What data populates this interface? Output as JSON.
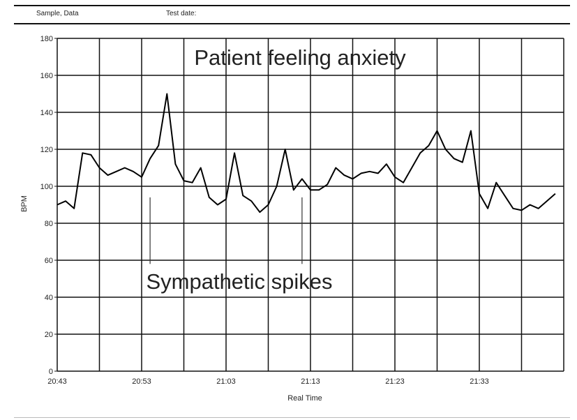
{
  "header": {
    "sample_label": "Sample, Data",
    "test_date_label": "Test date:"
  },
  "chart_data": {
    "type": "line",
    "title": "",
    "xlabel": "Real Time",
    "ylabel": "BPM",
    "ylim": [
      0,
      180
    ],
    "yticks": [
      0,
      20,
      40,
      60,
      80,
      100,
      120,
      140,
      160,
      180
    ],
    "xlim_minutes": [
      "20:43",
      "21:43"
    ],
    "xtick_labels": [
      "20:43",
      "20:53",
      "21:03",
      "21:13",
      "21:23",
      "21:33"
    ],
    "grid": true,
    "line_color": "#000000",
    "annotations": {
      "anxiety": "Patient feeling anxiety",
      "spikes": "Sympathetic spikes"
    },
    "annotation_markers": [
      "20:54",
      "21:12"
    ],
    "series": [
      {
        "x": [
          "20:43",
          "20:44",
          "20:45",
          "20:46",
          "20:47",
          "20:48",
          "20:49",
          "20:50",
          "20:51",
          "20:52",
          "20:53",
          "20:54",
          "20:55",
          "20:56",
          "20:57",
          "20:58",
          "20:59",
          "21:00",
          "21:01",
          "21:02",
          "21:03",
          "21:04",
          "21:05",
          "21:06",
          "21:07",
          "21:08",
          "21:09",
          "21:10",
          "21:11",
          "21:12",
          "21:13",
          "21:14",
          "21:15",
          "21:16",
          "21:17",
          "21:18",
          "21:19",
          "21:20",
          "21:21",
          "21:22",
          "21:23",
          "21:24",
          "21:25",
          "21:26",
          "21:27",
          "21:28",
          "21:29",
          "21:30",
          "21:31",
          "21:32",
          "21:33",
          "21:34",
          "21:35",
          "21:36",
          "21:37",
          "21:38",
          "21:39",
          "21:40",
          "21:41",
          "21:42"
        ],
        "values": [
          90,
          92,
          88,
          118,
          117,
          110,
          106,
          108,
          110,
          108,
          105,
          115,
          122,
          150,
          112,
          103,
          102,
          110,
          94,
          90,
          93,
          118,
          95,
          92,
          86,
          90,
          100,
          120,
          98,
          104,
          98,
          98,
          101,
          110,
          106,
          104,
          107,
          108,
          107,
          112,
          105,
          102,
          110,
          118,
          122,
          130,
          120,
          115,
          113,
          130,
          96,
          88,
          102,
          95,
          88,
          87,
          90,
          88,
          92,
          96
        ]
      }
    ]
  }
}
